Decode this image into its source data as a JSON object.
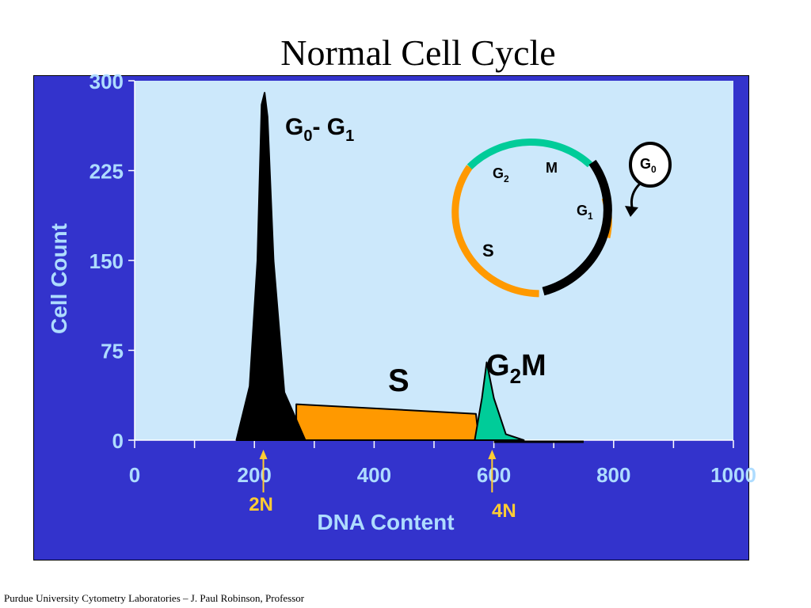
{
  "slide": {
    "title": "Normal Cell Cycle",
    "footer": "Purdue University Cytometry Laboratories – J. Paul Robinson, Professor"
  },
  "colors": {
    "frame_bg": "#3333cc",
    "plot_bg": "#cce8fb",
    "axis_text": "#aedcff",
    "marker": "#ffcc33",
    "g1_peak": "#000000",
    "s_phase": "#ff9900",
    "g2m_peak": "#00cc99"
  },
  "chart_data": {
    "type": "area",
    "title": "",
    "xlabel": "DNA Content",
    "ylabel": "Cell Count",
    "xlim": [
      0,
      1000
    ],
    "ylim": [
      0,
      300
    ],
    "x_ticks": [
      0,
      200,
      400,
      600,
      800,
      1000
    ],
    "y_ticks": [
      0,
      75,
      150,
      225,
      300
    ],
    "grid": false,
    "series": [
      {
        "name": "G0 - G1",
        "color": "#000000",
        "points": [
          [
            170,
            0
          ],
          [
            192,
            45
          ],
          [
            205,
            150
          ],
          [
            212,
            280
          ],
          [
            217,
            290
          ],
          [
            222,
            270
          ],
          [
            232,
            150
          ],
          [
            250,
            40
          ],
          [
            285,
            0
          ]
        ]
      },
      {
        "name": "S",
        "color": "#ff9900",
        "points": [
          [
            270,
            30
          ],
          [
            570,
            22
          ],
          [
            575,
            0
          ],
          [
            270,
            0
          ]
        ]
      },
      {
        "name": "G2M",
        "color": "#00cc99",
        "points": [
          [
            568,
            0
          ],
          [
            580,
            35
          ],
          [
            588,
            65
          ],
          [
            600,
            35
          ],
          [
            620,
            5
          ],
          [
            650,
            0
          ]
        ]
      }
    ],
    "phase_labels": {
      "g0g1": {
        "main": "G",
        "sub0": "0",
        "dash": "- G",
        "sub1": "1"
      },
      "s": "S",
      "g2m": {
        "main": "G",
        "sub": "2",
        "tail": "M"
      }
    },
    "markers": [
      {
        "label": "2N",
        "x": 215
      },
      {
        "label": "4N",
        "x": 597
      }
    ]
  },
  "cycle_diagram": {
    "labels": {
      "m": "M",
      "g2": {
        "main": "G",
        "sub": "2"
      },
      "g1": {
        "main": "G",
        "sub": "1"
      },
      "s": "S",
      "g0": {
        "main": "G",
        "sub": "0"
      }
    }
  }
}
